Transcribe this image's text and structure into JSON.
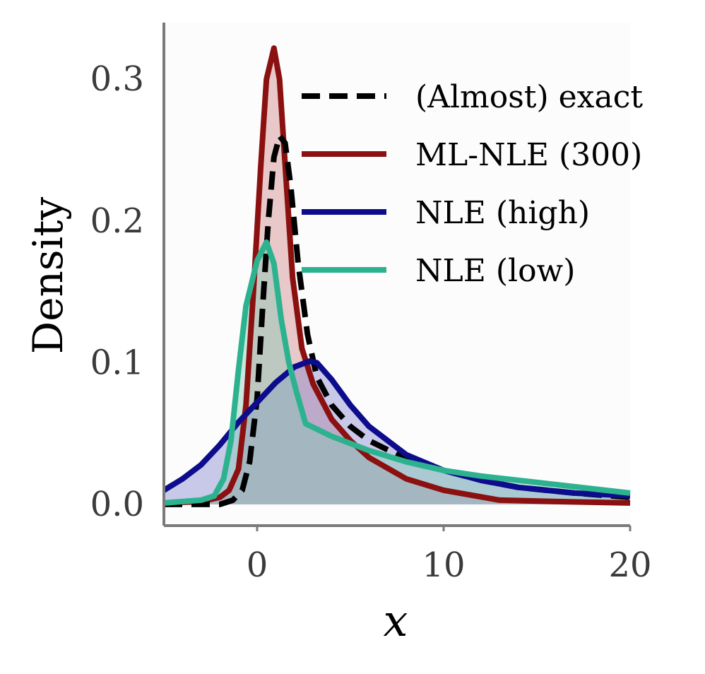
{
  "chart_data": {
    "type": "area",
    "title": "",
    "xlabel": "x",
    "ylabel": "Density",
    "xlim": [
      -5,
      20
    ],
    "ylim": [
      -0.015,
      0.34
    ],
    "xticks": [
      0,
      10,
      20
    ],
    "xtick_labels": [
      "0",
      "10",
      "20"
    ],
    "yticks": [
      0.0,
      0.1,
      0.2,
      0.3
    ],
    "ytick_labels": [
      "0.0",
      "0.1",
      "0.2",
      "0.3"
    ],
    "grid": false,
    "legend_position": "top-right",
    "series": [
      {
        "name": "(Almost) exact",
        "style": "dashed",
        "color": "#000000",
        "fill": "",
        "points": [
          [
            -5,
            0.0
          ],
          [
            -3,
            0.0
          ],
          [
            -2,
            0.0
          ],
          [
            -1.3,
            0.003
          ],
          [
            -0.8,
            0.01
          ],
          [
            -0.4,
            0.03
          ],
          [
            0,
            0.075
          ],
          [
            0.3,
            0.14
          ],
          [
            0.6,
            0.2
          ],
          [
            0.9,
            0.245
          ],
          [
            1.2,
            0.26
          ],
          [
            1.5,
            0.255
          ],
          [
            1.8,
            0.225
          ],
          [
            2.2,
            0.17
          ],
          [
            2.7,
            0.12
          ],
          [
            3.2,
            0.09
          ],
          [
            4,
            0.07
          ],
          [
            5,
            0.055
          ],
          [
            6,
            0.045
          ],
          [
            8,
            0.032
          ],
          [
            10,
            0.024
          ],
          [
            12,
            0.017
          ],
          [
            14,
            0.012
          ],
          [
            17,
            0.008
          ],
          [
            20,
            0.005
          ]
        ]
      },
      {
        "name": "ML-NLE (300)",
        "style": "solid",
        "color": "#8b1010",
        "fill": "#cc8080",
        "points": [
          [
            -5,
            0.001
          ],
          [
            -3,
            0.002
          ],
          [
            -2,
            0.005
          ],
          [
            -1.5,
            0.01
          ],
          [
            -1,
            0.025
          ],
          [
            -0.6,
            0.07
          ],
          [
            -0.2,
            0.15
          ],
          [
            0.2,
            0.24
          ],
          [
            0.5,
            0.3
          ],
          [
            0.9,
            0.322
          ],
          [
            1.2,
            0.3
          ],
          [
            1.5,
            0.24
          ],
          [
            1.9,
            0.16
          ],
          [
            2.4,
            0.11
          ],
          [
            3,
            0.085
          ],
          [
            4,
            0.06
          ],
          [
            5,
            0.045
          ],
          [
            6,
            0.033
          ],
          [
            8,
            0.018
          ],
          [
            10,
            0.01
          ],
          [
            13,
            0.003
          ],
          [
            16,
            0.002
          ],
          [
            20,
            0.001
          ]
        ]
      },
      {
        "name": "NLE (high)",
        "style": "solid",
        "color": "#0c0c8c",
        "fill": "#8080cc",
        "points": [
          [
            -5,
            0.01
          ],
          [
            -4,
            0.018
          ],
          [
            -3,
            0.028
          ],
          [
            -2,
            0.042
          ],
          [
            -1,
            0.058
          ],
          [
            0,
            0.072
          ],
          [
            1,
            0.086
          ],
          [
            2,
            0.097
          ],
          [
            2.8,
            0.101
          ],
          [
            3.2,
            0.1
          ],
          [
            4,
            0.088
          ],
          [
            5,
            0.07
          ],
          [
            6,
            0.055
          ],
          [
            8,
            0.035
          ],
          [
            10,
            0.024
          ],
          [
            12,
            0.017
          ],
          [
            14,
            0.012
          ],
          [
            17,
            0.008
          ],
          [
            20,
            0.006
          ]
        ]
      },
      {
        "name": "NLE (low)",
        "style": "solid",
        "color": "#2db28f",
        "fill": "#80cab4",
        "points": [
          [
            -5,
            0.001
          ],
          [
            -4,
            0.002
          ],
          [
            -3,
            0.003
          ],
          [
            -2.3,
            0.006
          ],
          [
            -1.8,
            0.018
          ],
          [
            -1.4,
            0.045
          ],
          [
            -1,
            0.095
          ],
          [
            -0.6,
            0.14
          ],
          [
            0,
            0.172
          ],
          [
            0.5,
            0.185
          ],
          [
            0.9,
            0.17
          ],
          [
            1.3,
            0.13
          ],
          [
            1.7,
            0.1
          ],
          [
            2.1,
            0.08
          ],
          [
            2.6,
            0.057
          ],
          [
            4,
            0.048
          ],
          [
            6,
            0.038
          ],
          [
            8,
            0.03
          ],
          [
            10,
            0.024
          ],
          [
            12,
            0.02
          ],
          [
            14,
            0.017
          ],
          [
            16,
            0.014
          ],
          [
            18,
            0.011
          ],
          [
            20,
            0.008
          ]
        ]
      }
    ]
  }
}
